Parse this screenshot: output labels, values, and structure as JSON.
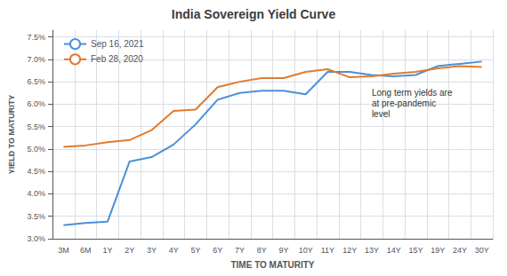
{
  "chart_data": {
    "type": "line",
    "title": "India Sovereign Yield Curve",
    "x_label": "TIME TO MATURITY",
    "y_label": "YIELD TO MATURITY",
    "categories": [
      "3M",
      "6M",
      "1Y",
      "2Y",
      "3Y",
      "4Y",
      "5Y",
      "6Y",
      "7Y",
      "8Y",
      "9Y",
      "10Y",
      "11Y",
      "12Y",
      "13Y",
      "14Y",
      "15Y",
      "19Y",
      "24Y",
      "30Y"
    ],
    "series": [
      {
        "name": "Sep 16, 2021",
        "color": "#4a90d9",
        "values": [
          3.3,
          3.35,
          3.38,
          4.72,
          4.82,
          5.1,
          5.55,
          6.1,
          6.25,
          6.3,
          6.3,
          6.22,
          6.72,
          6.72,
          6.65,
          6.62,
          6.65,
          6.85,
          6.9,
          6.95
        ]
      },
      {
        "name": "Feb 28, 2020",
        "color": "#e07b30",
        "values": [
          5.05,
          5.08,
          5.15,
          5.2,
          5.42,
          5.85,
          5.88,
          6.38,
          6.5,
          6.58,
          6.58,
          6.72,
          6.78,
          6.6,
          6.62,
          6.68,
          6.72,
          6.8,
          6.85,
          6.83
        ]
      }
    ],
    "ylim": [
      3.0,
      7.65
    ],
    "yticks": [
      {
        "value": 3.0,
        "label": "3.0%"
      },
      {
        "value": 3.5,
        "label": "3.5%"
      },
      {
        "value": 4.0,
        "label": "4.0%"
      },
      {
        "value": 4.5,
        "label": "4.5%"
      },
      {
        "value": 5.0,
        "label": "5.0%"
      },
      {
        "value": 5.5,
        "label": "5.5%"
      },
      {
        "value": 6.0,
        "label": "6.0%"
      },
      {
        "value": 6.5,
        "label": "6.5%"
      },
      {
        "value": 7.0,
        "label": "7.0%"
      },
      {
        "value": 7.5,
        "label": "7.5%"
      }
    ],
    "grid": true,
    "legend": "upper left",
    "annotations": [
      {
        "text": "Long term yields are\nat pre-pandemic\nlevel",
        "x": "13Y",
        "y": 6.38
      }
    ]
  }
}
